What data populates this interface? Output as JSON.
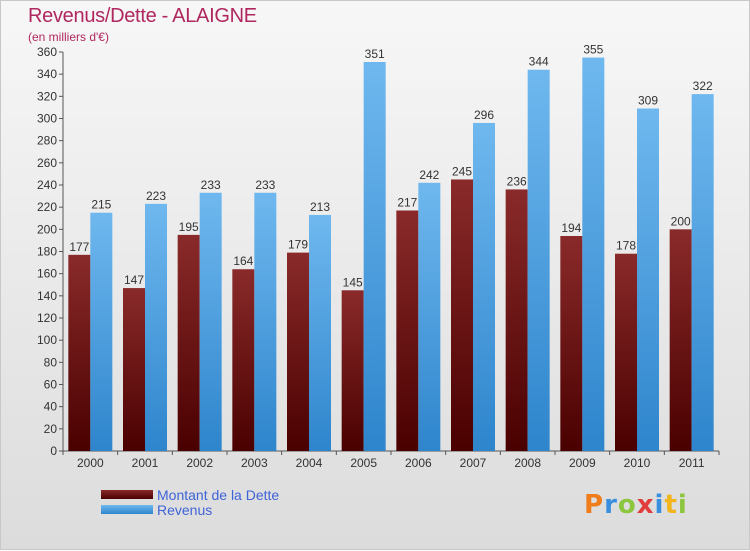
{
  "header": {
    "title": "Revenus/Dette - ALAIGNE",
    "subtitle": "(en milliers d'€)"
  },
  "colors": {
    "title": "#b02760",
    "dette_top": "#8a2a2a",
    "dette_bottom": "#4a0000",
    "revenus_top": "#6fb8ef",
    "revenus_bottom": "#2e85cc",
    "legend_text": "#3f63d8"
  },
  "logo": {
    "letters": [
      "P",
      "r",
      "o",
      "x",
      "i",
      "t",
      "i"
    ]
  },
  "chart_data": {
    "type": "bar",
    "title": "Revenus/Dette - ALAIGNE",
    "subtitle": "(en milliers d'€)",
    "categories": [
      "2000",
      "2001",
      "2002",
      "2003",
      "2004",
      "2005",
      "2006",
      "2007",
      "2008",
      "2009",
      "2010",
      "2011"
    ],
    "series": [
      {
        "name": "Montant de la Dette",
        "values": [
          177,
          147,
          195,
          164,
          179,
          145,
          217,
          245,
          236,
          194,
          178,
          200
        ]
      },
      {
        "name": "Revenus",
        "values": [
          215,
          223,
          233,
          233,
          213,
          351,
          242,
          296,
          344,
          355,
          309,
          322
        ]
      }
    ],
    "ylim": [
      0,
      360
    ],
    "ytick_step": 20,
    "grid": false,
    "legend_position": "bottom-left"
  }
}
